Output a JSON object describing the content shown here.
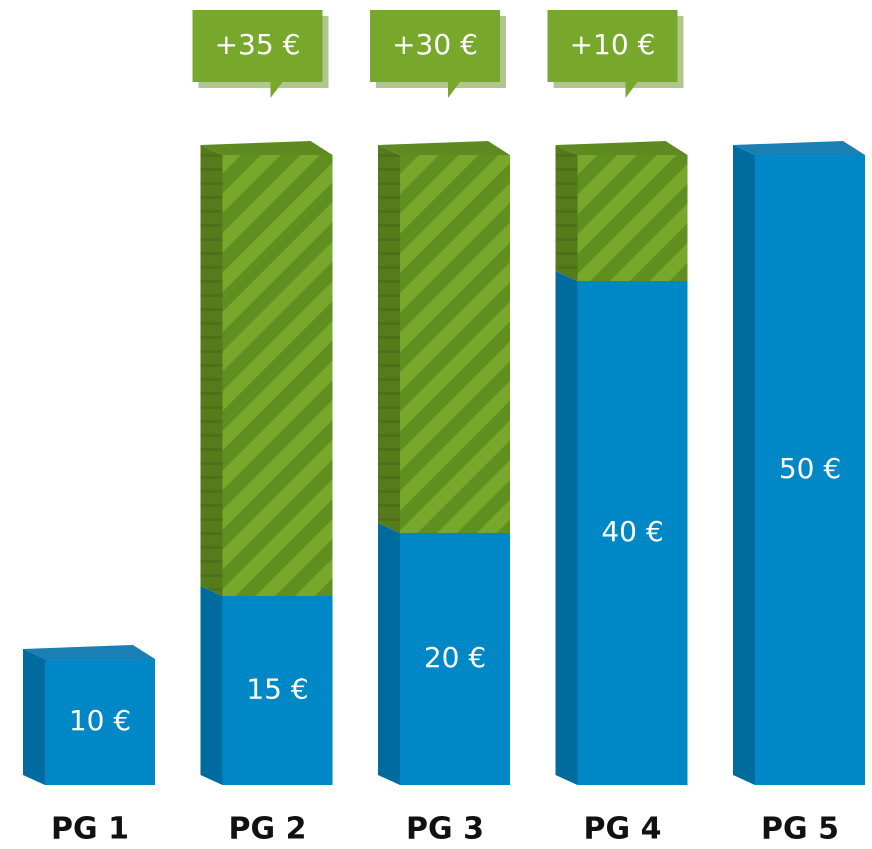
{
  "chart_data": {
    "type": "stacked_bar",
    "categories": [
      "PG 1",
      "PG 2",
      "PG 3",
      "PG 4",
      "PG 5"
    ],
    "series": [
      {
        "color": "#0088c6",
        "values": [
          10,
          15,
          20,
          40,
          50
        ],
        "value_labels": [
          "10 €",
          "15 €",
          "20 €",
          "40 €",
          "50 €"
        ]
      },
      {
        "color": "#77a82b",
        "values": [
          null,
          35,
          30,
          10,
          null
        ],
        "value_labels": [
          null,
          "+35 €",
          "+30 €",
          "+10 €",
          null
        ]
      }
    ]
  }
}
